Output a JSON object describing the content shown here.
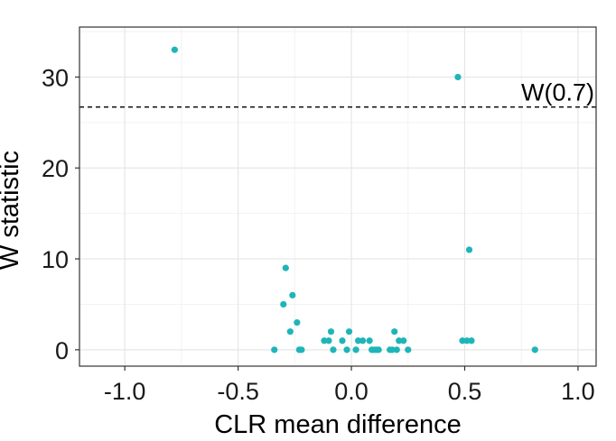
{
  "chart_data": {
    "type": "scatter",
    "title": "",
    "xlabel": "CLR mean difference",
    "ylabel": "W statistic",
    "xlim": [
      -1.2,
      1.08
    ],
    "ylim": [
      -1.8,
      35.5
    ],
    "x_ticks": [
      -1.0,
      -0.5,
      0.0,
      0.5,
      1.0
    ],
    "x_tick_labels": [
      "-1.0",
      "-0.5",
      "0.0",
      "0.5",
      "1.0"
    ],
    "y_ticks": [
      0,
      10,
      20,
      30
    ],
    "y_tick_labels": [
      "0",
      "10",
      "20",
      "30"
    ],
    "grid": true,
    "point_color": "#1fb5b8",
    "threshold": {
      "value": 26.7,
      "label": "W(0.7)",
      "style": "dashed"
    },
    "points": [
      {
        "x": -0.78,
        "y": 33
      },
      {
        "x": 0.47,
        "y": 30
      },
      {
        "x": 0.52,
        "y": 11
      },
      {
        "x": -0.29,
        "y": 9
      },
      {
        "x": -0.26,
        "y": 6
      },
      {
        "x": -0.3,
        "y": 5
      },
      {
        "x": -0.24,
        "y": 3
      },
      {
        "x": -0.27,
        "y": 2
      },
      {
        "x": -0.09,
        "y": 2
      },
      {
        "x": -0.01,
        "y": 2
      },
      {
        "x": 0.19,
        "y": 2
      },
      {
        "x": -0.12,
        "y": 1
      },
      {
        "x": -0.1,
        "y": 1
      },
      {
        "x": -0.04,
        "y": 1
      },
      {
        "x": 0.03,
        "y": 1
      },
      {
        "x": 0.05,
        "y": 1
      },
      {
        "x": 0.08,
        "y": 1
      },
      {
        "x": 0.21,
        "y": 1
      },
      {
        "x": 0.23,
        "y": 1
      },
      {
        "x": 0.49,
        "y": 1
      },
      {
        "x": 0.51,
        "y": 1
      },
      {
        "x": 0.53,
        "y": 1
      },
      {
        "x": -0.34,
        "y": 0
      },
      {
        "x": -0.23,
        "y": 0
      },
      {
        "x": -0.22,
        "y": 0
      },
      {
        "x": -0.08,
        "y": 0
      },
      {
        "x": -0.02,
        "y": 0
      },
      {
        "x": 0.02,
        "y": 0
      },
      {
        "x": 0.09,
        "y": 0
      },
      {
        "x": 0.1,
        "y": 0
      },
      {
        "x": 0.11,
        "y": 0
      },
      {
        "x": 0.12,
        "y": 0
      },
      {
        "x": 0.17,
        "y": 0
      },
      {
        "x": 0.18,
        "y": 0
      },
      {
        "x": 0.2,
        "y": 0
      },
      {
        "x": 0.25,
        "y": 0
      },
      {
        "x": 0.81,
        "y": 0
      }
    ]
  }
}
